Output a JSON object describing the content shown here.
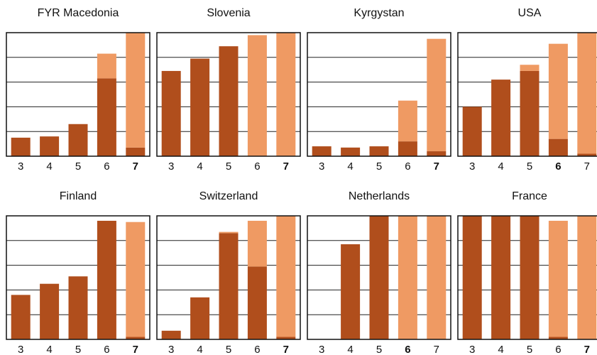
{
  "colors": {
    "dark": "#b04e1c",
    "light": "#ef9a63",
    "frame": "#111111"
  },
  "chart_data": {
    "type": "bar",
    "stacked": true,
    "ylim": [
      0,
      100
    ],
    "grid": true,
    "legend": "none",
    "panels": [
      {
        "title": "FYR Macedonia",
        "categories": [
          "3",
          "4",
          "5",
          "6",
          "7"
        ],
        "bold_category": "7",
        "series": [
          {
            "values": [
              15,
              16,
              26,
              63,
              7
            ]
          },
          {
            "values": [
              0,
              0,
              0,
              20,
              93
            ]
          }
        ]
      },
      {
        "title": "Slovenia",
        "categories": [
          "3",
          "4",
          "5",
          "6",
          "7"
        ],
        "bold_category": "7",
        "series": [
          {
            "values": [
              69,
              79,
              89,
              0,
              0
            ]
          },
          {
            "values": [
              0,
              0,
              0,
              98,
              100
            ]
          }
        ]
      },
      {
        "title": "Kyrgystan",
        "categories": [
          "3",
          "4",
          "5",
          "6",
          "7"
        ],
        "bold_category": "7",
        "series": [
          {
            "values": [
              8,
              7,
              8,
              12,
              4
            ]
          },
          {
            "values": [
              0,
              0,
              0,
              33,
              91
            ]
          }
        ]
      },
      {
        "title": "USA",
        "categories": [
          "3",
          "4",
          "5",
          "6",
          "7"
        ],
        "bold_category": "6",
        "series": [
          {
            "values": [
              40,
              62,
              69,
              14,
              2
            ]
          },
          {
            "values": [
              0,
              0,
              5,
              77,
              98
            ]
          }
        ]
      },
      {
        "title": "Finland",
        "categories": [
          "3",
          "4",
          "5",
          "6",
          "7"
        ],
        "bold_category": "7",
        "series": [
          {
            "values": [
              36,
              45,
              51,
              96,
              2
            ]
          },
          {
            "values": [
              0,
              0,
              0,
              0,
              93
            ]
          }
        ]
      },
      {
        "title": "Switzerland",
        "categories": [
          "3",
          "4",
          "5",
          "6",
          "7"
        ],
        "bold_category": "7",
        "series": [
          {
            "values": [
              7,
              34,
              86,
              59,
              2
            ]
          },
          {
            "values": [
              0,
              0,
              1,
              37,
              98
            ]
          }
        ]
      },
      {
        "title": "Netherlands",
        "categories": [
          "3",
          "4",
          "5",
          "6",
          "7"
        ],
        "bold_category": "6",
        "series": [
          {
            "values": [
              0,
              77,
              100,
              0,
              0
            ]
          },
          {
            "values": [
              0,
              0,
              0,
              100,
              100
            ]
          }
        ]
      },
      {
        "title": "France",
        "categories": [
          "3",
          "4",
          "5",
          "6",
          "7"
        ],
        "bold_category": "7",
        "series": [
          {
            "values": [
              100,
              100,
              100,
              2,
              0
            ]
          },
          {
            "values": [
              0,
              0,
              0,
              94,
              100
            ]
          }
        ]
      }
    ]
  }
}
